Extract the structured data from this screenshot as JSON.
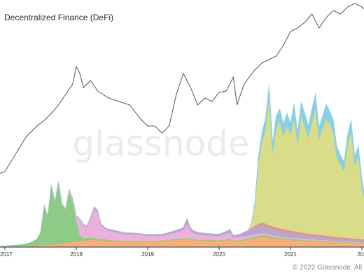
{
  "title": "Decentralized Finance (DeFi)",
  "watermark": "glassnode",
  "copyright": "© 2022 Glassnode. All",
  "colors": {
    "price_line": "#555555",
    "axis": "#333333",
    "series": {
      "orange": "#f9ae77",
      "green": "#8dcb86",
      "pink": "#eab1da",
      "purple": "#b9a4d6",
      "lightblue": "#8bcfe2",
      "olive": "#d9dc89",
      "red": "#e98f8f",
      "gray": "#b0b0b0"
    }
  },
  "chart_data": {
    "type": "area",
    "stacked": true,
    "x_ticks": [
      "2017",
      "2018",
      "2019",
      "2020",
      "2021",
      "202"
    ],
    "grid": false,
    "legend": "none",
    "x": [
      2016.5,
      2016.75,
      2017.0,
      2017.25,
      2017.35,
      2017.45,
      2017.5,
      2017.55,
      2017.6,
      2017.65,
      2017.7,
      2017.75,
      2017.8,
      2017.85,
      2017.9,
      2017.95,
      2018.0,
      2018.05,
      2018.1,
      2018.15,
      2018.2,
      2018.25,
      2018.3,
      2018.35,
      2018.4,
      2018.45,
      2018.5,
      2018.6,
      2018.7,
      2018.8,
      2018.9,
      2019.0,
      2019.1,
      2019.2,
      2019.3,
      2019.4,
      2019.5,
      2019.55,
      2019.6,
      2019.65,
      2019.7,
      2019.8,
      2019.9,
      2020.0,
      2020.05,
      2020.1,
      2020.15,
      2020.2,
      2020.3,
      2020.35,
      2020.4,
      2020.45,
      2020.5,
      2020.55,
      2020.6,
      2020.65,
      2020.7,
      2020.75,
      2020.8,
      2020.85,
      2020.9,
      2020.95,
      2021.0,
      2021.05,
      2021.1,
      2021.15,
      2021.2,
      2021.25,
      2021.3,
      2021.35,
      2021.4,
      2021.45,
      2021.5,
      2021.55,
      2021.6,
      2021.65,
      2021.7,
      2021.75,
      2021.8,
      2021.85,
      2021.9,
      2021.95,
      2022.0,
      2022.05
    ],
    "series": [
      {
        "key": "orange",
        "values": [
          0,
          0,
          0.3,
          0.5,
          0.7,
          1,
          1.2,
          1.5,
          1.6,
          1.8,
          2,
          2.2,
          2.4,
          3,
          3.5,
          4,
          4.5,
          5,
          4.5,
          5,
          5.5,
          5.5,
          5,
          4.8,
          5,
          4.5,
          4.3,
          4,
          4,
          4,
          4,
          4,
          4.2,
          4.4,
          5,
          5.4,
          6,
          6,
          5.5,
          5.2,
          5,
          4.8,
          4.6,
          4.5,
          4.8,
          5,
          5.5,
          4,
          4.5,
          5,
          5.5,
          6,
          6.5,
          7,
          7.5,
          7.5,
          7,
          6.5,
          6.2,
          6,
          5.8,
          5.5,
          5.2,
          5,
          5,
          4.8,
          4.6,
          4.5,
          4.4,
          4.3,
          4.2,
          4,
          4,
          3.8,
          3.7,
          3.6,
          3.5,
          3.4,
          3.3,
          3.2,
          3,
          3,
          2.8,
          2.7
        ]
      },
      {
        "key": "green",
        "values": [
          0,
          0,
          0.5,
          1.5,
          2.5,
          5,
          10,
          30,
          22,
          45,
          32,
          47,
          30,
          25,
          38,
          30,
          15,
          4,
          2,
          2,
          2,
          1.5,
          1.2,
          1,
          1,
          0.9,
          0.8,
          0.8,
          0.7,
          0.7,
          0.6,
          0.6,
          0.6,
          0.6,
          0.7,
          0.7,
          0.8,
          0.8,
          0.8,
          0.8,
          0.7,
          0.7,
          0.7,
          0.7,
          0.8,
          0.9,
          1,
          0.8,
          0.9,
          1,
          1,
          1.2,
          1.3,
          1.3,
          1.4,
          1.3,
          1.2,
          1.1,
          1,
          1,
          1,
          0.9,
          0.9,
          0.9,
          0.8,
          0.8,
          0.8,
          0.7,
          0.7,
          0.7,
          0.6,
          0.6,
          0.6,
          0.6,
          0.5,
          0.5,
          0.5,
          0.5,
          0.5,
          0.5,
          0.5,
          0.5,
          0.4,
          0.4
        ]
      },
      {
        "key": "pink",
        "values": [
          0,
          0,
          0,
          0,
          0,
          0,
          0,
          0,
          0,
          0,
          0,
          0,
          0,
          1,
          2,
          3,
          4,
          12,
          10,
          8,
          14,
          22,
          20,
          10,
          8,
          7,
          7,
          6,
          5,
          5,
          4.5,
          4,
          3.8,
          3.5,
          4,
          5,
          6,
          11,
          6,
          4.5,
          4,
          3.5,
          3.2,
          3,
          3.5,
          4,
          4.5,
          2.5,
          2.5,
          2.5,
          2.2,
          2,
          2,
          1.8,
          1.6,
          1.5,
          1.4,
          1.3,
          1.2,
          1.1,
          1,
          1,
          1,
          1,
          0.9,
          0.9,
          0.8,
          0.8,
          0.8,
          0.7,
          0.7,
          0.7,
          0.6,
          0.6,
          0.6,
          0.5,
          0.5,
          0.5,
          0.5,
          0.5,
          0.4,
          0.4,
          0.4,
          0.4
        ]
      },
      {
        "key": "purple",
        "values": [
          0,
          0,
          0,
          0,
          0,
          0,
          0,
          0,
          0,
          0,
          0,
          0,
          0,
          0,
          0,
          0,
          0.2,
          0.5,
          0.8,
          1,
          1.2,
          1.5,
          1.5,
          1.2,
          1,
          1,
          1,
          1,
          1,
          1,
          1,
          1,
          1,
          1.2,
          1.4,
          1.6,
          2,
          4,
          2,
          1.6,
          1.5,
          1.5,
          1.5,
          1.5,
          1.8,
          2,
          2.5,
          1.5,
          2,
          2.5,
          3,
          3.5,
          4,
          4,
          4,
          3.5,
          3,
          2.8,
          2.6,
          2.5,
          2.4,
          2.2,
          2,
          2,
          1.9,
          1.8,
          1.7,
          1.6,
          1.5,
          1.5,
          1.4,
          1.3,
          1.2,
          1.2,
          1.1,
          1,
          1,
          1,
          1,
          0.9,
          0.9,
          0.8,
          0.8,
          0.8
        ]
      },
      {
        "key": "gray",
        "values": [
          0,
          0,
          0,
          0,
          0,
          0,
          0,
          0,
          0,
          0,
          0,
          0,
          0,
          0,
          0,
          0,
          0,
          0,
          0,
          0,
          0,
          0,
          0,
          0,
          0,
          0,
          0,
          0,
          0,
          0,
          0,
          0,
          0,
          0,
          0,
          0,
          0,
          0,
          0,
          0,
          0,
          0,
          0,
          0,
          0,
          0,
          0,
          0,
          0,
          0,
          0,
          0.5,
          1,
          1.5,
          2,
          2,
          2,
          2,
          1.8,
          1.7,
          1.6,
          1.5,
          1.5,
          1.4,
          1.3,
          1.2,
          1.2,
          1.1,
          1,
          1,
          1,
          0.9,
          0.9,
          0.8,
          0.8,
          0.8,
          0.7,
          0.7,
          0.7,
          0.6,
          0.6,
          0.6,
          0.5,
          0.5
        ]
      },
      {
        "key": "red",
        "values": [
          0,
          0,
          0,
          0,
          0,
          0,
          0,
          0,
          0,
          0,
          0,
          0,
          0,
          0,
          0,
          0,
          0,
          0,
          0,
          0,
          0,
          0,
          0,
          0,
          0,
          0,
          0,
          0,
          0,
          0,
          0,
          0,
          0,
          0,
          0,
          0,
          0,
          0,
          0,
          0,
          0,
          0,
          0,
          0,
          0,
          0,
          0,
          0,
          0,
          0.3,
          0.6,
          1,
          1.4,
          1.8,
          2,
          2,
          2,
          2,
          2,
          1.9,
          1.8,
          1.8,
          1.8,
          1.7,
          1.6,
          1.6,
          1.5,
          1.5,
          1.5,
          1.4,
          1.4,
          1.3,
          1.3,
          1.2,
          1.2,
          1.2,
          1.1,
          1.1,
          1,
          1,
          1,
          1,
          1,
          1
        ]
      },
      {
        "key": "olive",
        "values": [
          0,
          0,
          0,
          0,
          0,
          0,
          0,
          0,
          0,
          0,
          0,
          0,
          0,
          0,
          0,
          0,
          0,
          0,
          0,
          0,
          0,
          0,
          0,
          0,
          0,
          0,
          0,
          0,
          0,
          0,
          0,
          0,
          0,
          0,
          0,
          0,
          0,
          0,
          0,
          0,
          0,
          0,
          0,
          0,
          0,
          0,
          0,
          0,
          0,
          0,
          0,
          2,
          15,
          45,
          60,
          70,
          95,
          55,
          75,
          80,
          70,
          78,
          72,
          85,
          66,
          88,
          80,
          72,
          84,
          95,
          72,
          80,
          88,
          84,
          78,
          60,
          55,
          50,
          70,
          80,
          55,
          62,
          40,
          25
        ]
      },
      {
        "key": "lightblue",
        "values": [
          0,
          0,
          0,
          0,
          0,
          0,
          0,
          0,
          0,
          0,
          0,
          0,
          0,
          0,
          0,
          0,
          0,
          0,
          0,
          0,
          0,
          0,
          0,
          0,
          0,
          0,
          0,
          0,
          0,
          0,
          0,
          0,
          0,
          0,
          0,
          0,
          0,
          0,
          0,
          0,
          0,
          0,
          0,
          0,
          0,
          0,
          0,
          0,
          0,
          0,
          0,
          1,
          3,
          6,
          8,
          9,
          10,
          8,
          9,
          10,
          9,
          10,
          9,
          11,
          9,
          10,
          10,
          9,
          10,
          11,
          9,
          10,
          11,
          10,
          10,
          8,
          7,
          7,
          8,
          9,
          7,
          8,
          6,
          5
        ]
      }
    ],
    "price_line": {
      "x": [
        2016.5,
        2016.75,
        2017.0,
        2017.15,
        2017.3,
        2017.45,
        2017.55,
        2017.65,
        2017.75,
        2017.85,
        2017.95,
        2018.0,
        2018.05,
        2018.1,
        2018.2,
        2018.3,
        2018.45,
        2018.6,
        2018.75,
        2018.9,
        2019.0,
        2019.1,
        2019.2,
        2019.3,
        2019.4,
        2019.5,
        2019.6,
        2019.7,
        2019.8,
        2019.9,
        2020.0,
        2020.1,
        2020.2,
        2020.25,
        2020.35,
        2020.5,
        2020.6,
        2020.7,
        2020.8,
        2020.9,
        2021.0,
        2021.1,
        2021.2,
        2021.3,
        2021.35,
        2021.4,
        2021.5,
        2021.6,
        2021.7,
        2021.8,
        2021.9,
        2022.0,
        2022.05
      ],
      "values": [
        30,
        35,
        45,
        70,
        95,
        110,
        118,
        128,
        140,
        155,
        170,
        195,
        185,
        165,
        175,
        160,
        150,
        145,
        140,
        120,
        110,
        110,
        100,
        110,
        155,
        185,
        165,
        140,
        150,
        145,
        158,
        160,
        180,
        140,
        170,
        190,
        200,
        205,
        210,
        225,
        245,
        250,
        258,
        270,
        260,
        250,
        265,
        275,
        270,
        280,
        285,
        280,
        275
      ]
    }
  }
}
